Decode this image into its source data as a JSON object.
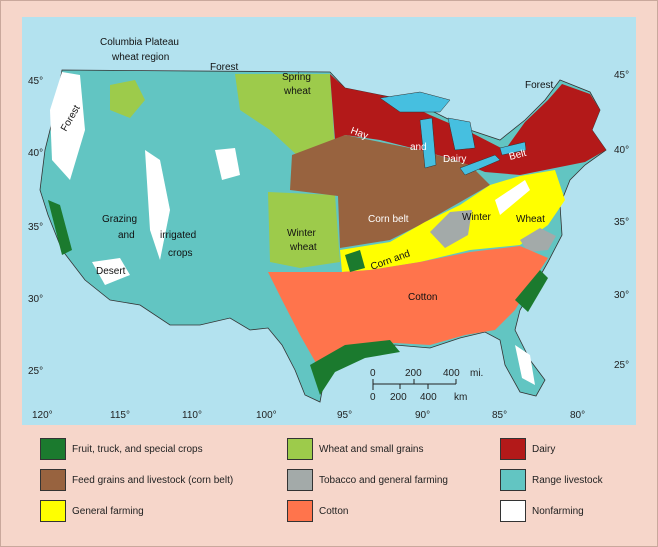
{
  "map_labels": {
    "columbia_1": "Columbia Plateau",
    "columbia_2": "wheat region",
    "forest_nw": "Forest",
    "forest_coast": "Forest",
    "forest_ne": "Forest",
    "spring_1": "Spring",
    "spring_2": "wheat",
    "hay": "Hay",
    "and1": "and",
    "dairy": "Dairy",
    "belt": "Belt",
    "corn_belt": "Corn belt",
    "winter_w1": "Winter",
    "winter_w2": "wheat",
    "corn_and": "Corn and",
    "winter": "Winter",
    "wheat": "Wheat",
    "cotton": "Cotton",
    "grazing": "Grazing",
    "and2": "and",
    "irrigated": "irrigated",
    "crops": "crops",
    "desert": "Desert"
  },
  "latitude_left": [
    "45°",
    "40°",
    "35°",
    "30°",
    "25°"
  ],
  "latitude_right": [
    "45°",
    "40°",
    "35°",
    "30°",
    "25°"
  ],
  "longitude": [
    "120°",
    "115°",
    "110°",
    "100°",
    "95°",
    "90°",
    "85°",
    "80°"
  ],
  "scale": {
    "mi_ticks": [
      "0",
      "200",
      "400"
    ],
    "mi_unit": "mi.",
    "km_ticks": [
      "0",
      "200",
      "400"
    ],
    "km_unit": "km"
  },
  "legend": [
    {
      "label": "Fruit, truck, and special crops",
      "color": "#1b7a2e"
    },
    {
      "label": "Wheat and small grains",
      "color": "#9dcb4b"
    },
    {
      "label": "Dairy",
      "color": "#b31919"
    },
    {
      "label": "Feed grains and livestock (corn belt)",
      "color": "#98633f"
    },
    {
      "label": "Tobacco and general farming",
      "color": "#a3aaa9"
    },
    {
      "label": "Range livestock",
      "color": "#62c5c2"
    },
    {
      "label": "General farming",
      "color": "#ffff00"
    },
    {
      "label": "Cotton",
      "color": "#ff744c"
    },
    {
      "label": "Nonfarming",
      "color": "#ffffff"
    }
  ],
  "water_color": "#b3e2ef",
  "lake_color": "#46bfe0"
}
